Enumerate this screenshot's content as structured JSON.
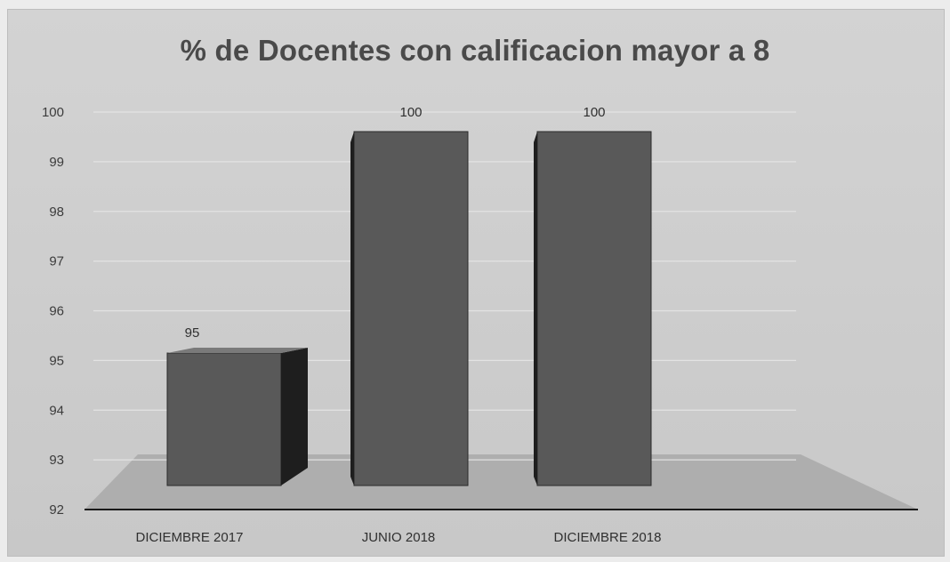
{
  "chart_data": {
    "type": "bar",
    "title": "% de Docentes con calificacion mayor a 8",
    "categories": [
      "DICIEMBRE 2017",
      "JUNIO 2018",
      "DICIEMBRE 2018"
    ],
    "values": [
      95,
      100,
      100
    ],
    "data_labels": [
      "95",
      "100",
      "100"
    ],
    "xlabel": "",
    "ylabel": "",
    "ylim": [
      92,
      100
    ],
    "yticks": [
      92,
      93,
      94,
      95,
      96,
      97,
      98,
      99,
      100
    ],
    "grid": true,
    "legend": "none",
    "style": "3d-column",
    "colors": {
      "bar_front": "#595959",
      "bar_side": "#1e1e1e",
      "bar_top": "#7a7a7a",
      "floor": "#a9a9a9",
      "title": "#4a4a4a"
    }
  }
}
